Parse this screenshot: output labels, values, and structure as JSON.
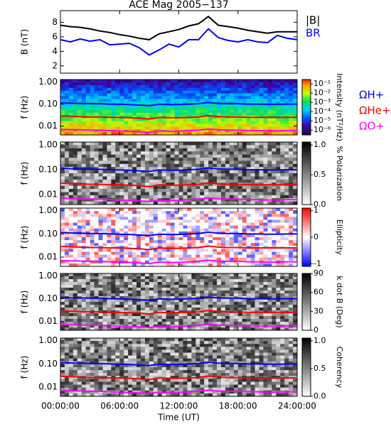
{
  "chart_data": [
    {
      "type": "line",
      "title": "ACE Mag 2005−137",
      "ylabel": "B (nT)",
      "xlim": [
        0,
        24
      ],
      "ylim": [
        1,
        9.6
      ],
      "yticks": [
        2,
        4,
        6,
        8
      ],
      "x": [
        0,
        1,
        2,
        3,
        4,
        5,
        6,
        7,
        8,
        9,
        10,
        11,
        12,
        13,
        14,
        15,
        16,
        17,
        18,
        19,
        20,
        21,
        22,
        23,
        24
      ],
      "series": [
        {
          "name": "|B|",
          "color": "#000000",
          "values": [
            7.6,
            7.4,
            7.3,
            7.1,
            6.8,
            6.6,
            6.3,
            6.1,
            5.8,
            5.6,
            6.4,
            6.7,
            7.0,
            7.5,
            7.8,
            8.8,
            7.6,
            7.4,
            7.2,
            6.9,
            6.7,
            6.5,
            6.7,
            6.7,
            6.7
          ]
        },
        {
          "name": "BR",
          "color": "#0000ff",
          "values": [
            5.6,
            5.3,
            5.7,
            5.4,
            5.6,
            4.9,
            5.0,
            5.1,
            4.5,
            3.5,
            4.2,
            5.0,
            4.6,
            5.6,
            5.6,
            7.1,
            5.9,
            5.5,
            5.3,
            5.6,
            5.3,
            5.2,
            6.2,
            5.8,
            5.6
          ]
        }
      ]
    },
    {
      "type": "spectrogram",
      "ylabel": "f (Hz)",
      "log_y": true,
      "xlim": [
        0,
        24
      ],
      "ylim": [
        0.004,
        1.3
      ],
      "yticks": [
        {
          "value": 1,
          "label": "1.00"
        },
        {
          "value": 0.1,
          "label": "0.10"
        },
        0.01
      ],
      "colormap": "rainbow",
      "colorbar_label": "Intensity (nT²/Hz)",
      "colorbar_log": true,
      "colorbar_lim": [
        3e-07,
        0.3
      ],
      "colorbar_ticks": [
        {
          "value": 0.1,
          "label": "10⁻¹"
        },
        {
          "value": 0.01,
          "label": "10⁻²"
        },
        {
          "value": 0.001,
          "label": "10⁻³"
        },
        {
          "value": 0.0001,
          "label": "10⁻⁴"
        },
        {
          "value": 1e-05,
          "label": "10⁻⁵"
        },
        {
          "value": 1e-06,
          "label": "10⁻⁶"
        }
      ],
      "x": [
        0,
        1,
        2,
        3,
        4,
        5,
        6,
        7,
        8,
        9,
        10,
        11,
        12,
        13,
        14,
        15,
        16,
        17,
        18,
        19,
        20,
        21,
        22,
        23,
        24
      ],
      "series": [
        {
          "name": "ΩH+",
          "color": "#0000ff",
          "values": [
            0.115,
            0.11,
            0.108,
            0.105,
            0.105,
            0.1,
            0.098,
            0.095,
            0.09,
            0.085,
            0.098,
            0.095,
            0.095,
            0.1,
            0.105,
            0.118,
            0.108,
            0.105,
            0.105,
            0.1,
            0.1,
            0.098,
            0.098,
            0.1,
            0.1
          ]
        },
        {
          "name": "ΩHe+",
          "color": "#ff0000",
          "values": [
            0.029,
            0.028,
            0.027,
            0.026,
            0.026,
            0.025,
            0.025,
            0.024,
            0.023,
            0.021,
            0.025,
            0.024,
            0.024,
            0.025,
            0.026,
            0.03,
            0.027,
            0.026,
            0.026,
            0.025,
            0.025,
            0.025,
            0.025,
            0.025,
            0.025
          ]
        },
        {
          "name": "ΩO+",
          "color": "#ff00ff",
          "values": [
            0.0072,
            0.0069,
            0.0068,
            0.0066,
            0.0066,
            0.0063,
            0.0061,
            0.0059,
            0.0056,
            0.0053,
            0.0061,
            0.0059,
            0.0059,
            0.0063,
            0.0066,
            0.0074,
            0.0068,
            0.0066,
            0.0066,
            0.0063,
            0.0063,
            0.0061,
            0.0061,
            0.0063,
            0.0063
          ]
        }
      ]
    },
    {
      "type": "spectrogram",
      "ylabel": "f (Hz)",
      "log_y": true,
      "xlim": [
        0,
        24
      ],
      "ylim": [
        0.004,
        1.3
      ],
      "yticks": [
        {
          "value": 1,
          "label": "1.00"
        },
        {
          "value": 0.1,
          "label": "0.10"
        },
        0.01
      ],
      "colormap": "gray",
      "colorbar_label": "% Polarization",
      "colorbar_lim": [
        0,
        1.05
      ],
      "colorbar_ticks": [
        {
          "value": 1,
          "label": "1.0"
        },
        0.5,
        {
          "value": 0,
          "label": "0.0"
        }
      ],
      "x": [
        0,
        1,
        2,
        3,
        4,
        5,
        6,
        7,
        8,
        9,
        10,
        11,
        12,
        13,
        14,
        15,
        16,
        17,
        18,
        19,
        20,
        21,
        22,
        23,
        24
      ],
      "series": [
        {
          "color": "#0000ff",
          "values": [
            0.115,
            0.11,
            0.108,
            0.105,
            0.105,
            0.1,
            0.098,
            0.095,
            0.09,
            0.085,
            0.098,
            0.095,
            0.095,
            0.1,
            0.105,
            0.118,
            0.108,
            0.105,
            0.105,
            0.1,
            0.1,
            0.098,
            0.098,
            0.1,
            0.1
          ]
        },
        {
          "color": "#ff0000",
          "values": [
            0.029,
            0.028,
            0.027,
            0.026,
            0.026,
            0.025,
            0.025,
            0.024,
            0.023,
            0.021,
            0.025,
            0.024,
            0.024,
            0.025,
            0.026,
            0.03,
            0.027,
            0.026,
            0.026,
            0.025,
            0.025,
            0.025,
            0.025,
            0.025,
            0.025
          ]
        },
        {
          "color": "#ff00ff",
          "values": [
            0.0072,
            0.0069,
            0.0068,
            0.0066,
            0.0066,
            0.0063,
            0.0061,
            0.0059,
            0.0056,
            0.0053,
            0.0061,
            0.0059,
            0.0059,
            0.0063,
            0.0066,
            0.0074,
            0.0068,
            0.0066,
            0.0066,
            0.0063,
            0.0063,
            0.0061,
            0.0061,
            0.0063,
            0.0063
          ]
        }
      ]
    },
    {
      "type": "spectrogram",
      "ylabel": "f (Hz)",
      "log_y": true,
      "xlim": [
        0,
        24
      ],
      "ylim": [
        0.004,
        1.3
      ],
      "yticks": [
        {
          "value": 1,
          "label": "1.00"
        },
        {
          "value": 0.1,
          "label": "0.10"
        },
        0.01
      ],
      "colormap": "bwr",
      "colorbar_label": "Ellipticity",
      "colorbar_lim": [
        -1.1,
        1.1
      ],
      "colorbar_ticks": [
        1,
        0,
        -1
      ],
      "x": [
        0,
        1,
        2,
        3,
        4,
        5,
        6,
        7,
        8,
        9,
        10,
        11,
        12,
        13,
        14,
        15,
        16,
        17,
        18,
        19,
        20,
        21,
        22,
        23,
        24
      ],
      "series": [
        {
          "color": "#0000ff",
          "values": [
            0.115,
            0.11,
            0.108,
            0.105,
            0.105,
            0.1,
            0.098,
            0.095,
            0.09,
            0.085,
            0.098,
            0.095,
            0.095,
            0.1,
            0.105,
            0.118,
            0.108,
            0.105,
            0.105,
            0.1,
            0.1,
            0.098,
            0.098,
            0.1,
            0.1
          ]
        },
        {
          "color": "#ff0000",
          "values": [
            0.029,
            0.028,
            0.027,
            0.026,
            0.026,
            0.025,
            0.025,
            0.024,
            0.023,
            0.021,
            0.025,
            0.024,
            0.024,
            0.025,
            0.026,
            0.03,
            0.027,
            0.026,
            0.026,
            0.025,
            0.025,
            0.025,
            0.025,
            0.025,
            0.025
          ]
        },
        {
          "color": "#ff00ff",
          "values": [
            0.0072,
            0.0069,
            0.0068,
            0.0066,
            0.0066,
            0.0063,
            0.0061,
            0.0059,
            0.0056,
            0.0053,
            0.0061,
            0.0059,
            0.0059,
            0.0063,
            0.0066,
            0.0074,
            0.0068,
            0.0066,
            0.0066,
            0.0063,
            0.0063,
            0.0061,
            0.0061,
            0.0063,
            0.0063
          ]
        }
      ]
    },
    {
      "type": "spectrogram",
      "ylabel": "f (Hz)",
      "log_y": true,
      "xlim": [
        0,
        24
      ],
      "ylim": [
        0.004,
        1.3
      ],
      "yticks": [
        {
          "value": 1,
          "label": "1.00"
        },
        {
          "value": 0.1,
          "label": "0.10"
        },
        0.01
      ],
      "colormap": "gray",
      "colorbar_label": "k dot B (Deg)",
      "colorbar_lim": [
        0,
        90
      ],
      "colorbar_ticks": [
        90,
        60,
        30,
        0
      ],
      "x": [
        0,
        1,
        2,
        3,
        4,
        5,
        6,
        7,
        8,
        9,
        10,
        11,
        12,
        13,
        14,
        15,
        16,
        17,
        18,
        19,
        20,
        21,
        22,
        23,
        24
      ],
      "series": [
        {
          "color": "#0000ff",
          "values": [
            0.115,
            0.11,
            0.108,
            0.105,
            0.105,
            0.1,
            0.098,
            0.095,
            0.09,
            0.085,
            0.098,
            0.095,
            0.095,
            0.1,
            0.105,
            0.118,
            0.108,
            0.105,
            0.105,
            0.1,
            0.1,
            0.098,
            0.098,
            0.1,
            0.1
          ]
        },
        {
          "color": "#ff0000",
          "values": [
            0.029,
            0.028,
            0.027,
            0.026,
            0.026,
            0.025,
            0.025,
            0.024,
            0.023,
            0.021,
            0.025,
            0.024,
            0.024,
            0.025,
            0.026,
            0.03,
            0.027,
            0.026,
            0.026,
            0.025,
            0.025,
            0.025,
            0.025,
            0.025,
            0.025
          ]
        },
        {
          "color": "#ff00ff",
          "values": [
            0.0072,
            0.0069,
            0.0068,
            0.0066,
            0.0066,
            0.0063,
            0.0061,
            0.0059,
            0.0056,
            0.0053,
            0.0061,
            0.0059,
            0.0059,
            0.0063,
            0.0066,
            0.0074,
            0.0068,
            0.0066,
            0.0066,
            0.0063,
            0.0063,
            0.0061,
            0.0061,
            0.0063,
            0.0063
          ]
        }
      ]
    },
    {
      "type": "spectrogram",
      "ylabel": "f (Hz)",
      "log_y": true,
      "xlim": [
        0,
        24
      ],
      "ylim": [
        0.004,
        1.3
      ],
      "yticks": [
        {
          "value": 1,
          "label": "1.00"
        },
        {
          "value": 0.1,
          "label": "0.10"
        },
        0.01
      ],
      "colormap": "gray",
      "colorbar_label": "Coherency",
      "colorbar_lim": [
        0,
        1.05
      ],
      "colorbar_ticks": [
        {
          "value": 1,
          "label": "1.0"
        },
        0.5,
        {
          "value": 0,
          "label": "0.0"
        }
      ],
      "xlabel": "Time (UT)",
      "xticks": [
        {
          "value": 0,
          "label": "00:00:00"
        },
        {
          "value": 6,
          "label": "06:00:00"
        },
        {
          "value": 12,
          "label": "12:00:00"
        },
        {
          "value": 18,
          "label": "18:00:00"
        },
        {
          "value": 24,
          "label": "24:00:00"
        }
      ],
      "x": [
        0,
        1,
        2,
        3,
        4,
        5,
        6,
        7,
        8,
        9,
        10,
        11,
        12,
        13,
        14,
        15,
        16,
        17,
        18,
        19,
        20,
        21,
        22,
        23,
        24
      ],
      "series": [
        {
          "color": "#0000ff",
          "values": [
            0.115,
            0.11,
            0.108,
            0.105,
            0.105,
            0.1,
            0.098,
            0.095,
            0.09,
            0.085,
            0.098,
            0.095,
            0.095,
            0.1,
            0.105,
            0.118,
            0.108,
            0.105,
            0.105,
            0.1,
            0.1,
            0.098,
            0.098,
            0.1,
            0.1
          ]
        },
        {
          "color": "#ff0000",
          "values": [
            0.029,
            0.028,
            0.027,
            0.026,
            0.026,
            0.025,
            0.025,
            0.024,
            0.023,
            0.021,
            0.025,
            0.024,
            0.024,
            0.025,
            0.026,
            0.03,
            0.027,
            0.026,
            0.026,
            0.025,
            0.025,
            0.025,
            0.025,
            0.025,
            0.025
          ]
        },
        {
          "color": "#ff00ff",
          "values": [
            0.0072,
            0.0069,
            0.0068,
            0.0066,
            0.0066,
            0.0063,
            0.0061,
            0.0059,
            0.0056,
            0.0053,
            0.0061,
            0.0059,
            0.0059,
            0.0063,
            0.0066,
            0.0074,
            0.0068,
            0.0066,
            0.0066,
            0.0063,
            0.0063,
            0.0061,
            0.0061,
            0.0063,
            0.0063
          ]
        }
      ]
    }
  ]
}
